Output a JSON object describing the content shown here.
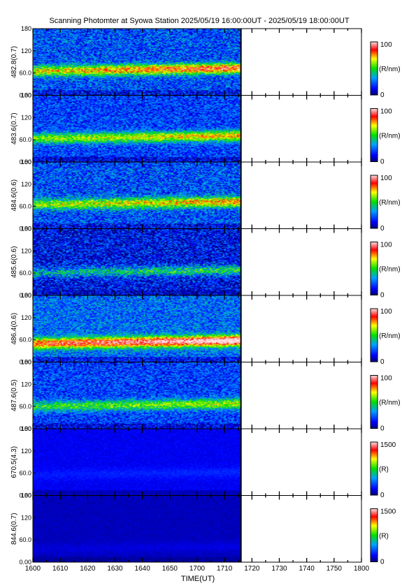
{
  "title": "Scanning Photomter at Syowa Station 2025/05/19 16:00:00UT - 2025/05/19 18:00:00UT",
  "xlabel": "TIME(UT)",
  "x_tick_labels": [
    "1600",
    "1610",
    "1620",
    "1630",
    "1640",
    "1650",
    "1700",
    "1710",
    "1720",
    "1730",
    "1740",
    "1750",
    "1800"
  ],
  "chart_data": {
    "type": "heatmap",
    "title": "Scanning Photomter at Syowa Station 2025/05/19 16:00:00UT - 2025/05/19 18:00:00UT",
    "xlabel": "TIME(UT)",
    "x_range": [
      "16:00",
      "18:00"
    ],
    "data_end": "17:16",
    "y_range": [
      0,
      180
    ],
    "panels": [
      {
        "ylabel": "482.8(0.7)",
        "yticks": [
          "0.00",
          "60.0",
          "120",
          "180"
        ],
        "colorbar_unit": "(R/nm)",
        "colorbar_range": [
          0,
          100
        ],
        "cb_max_label": "100",
        "cb_min_label": "0",
        "band_elev": 70,
        "band_strength": 0.55,
        "base": 0.22,
        "noise": 0.35
      },
      {
        "ylabel": "483.6(0.7)",
        "yticks": [
          "0.00",
          "60.0",
          "120",
          "180"
        ],
        "colorbar_unit": "(R/nm)",
        "colorbar_range": [
          0,
          100
        ],
        "cb_max_label": "100",
        "cb_min_label": "0",
        "band_elev": 68,
        "band_strength": 0.45,
        "base": 0.2,
        "noise": 0.3
      },
      {
        "ylabel": "484.6(0.6)",
        "yticks": [
          "0.00",
          "60.0",
          "120",
          "180"
        ],
        "colorbar_unit": "(R/nm)",
        "colorbar_range": [
          0,
          100
        ],
        "cb_max_label": "100",
        "cb_min_label": "0",
        "band_elev": 70,
        "band_strength": 0.45,
        "base": 0.22,
        "noise": 0.35
      },
      {
        "ylabel": "485.6(0.6)",
        "yticks": [
          "0.00",
          "60.0",
          "120",
          "180"
        ],
        "colorbar_unit": "(R/nm)",
        "colorbar_range": [
          0,
          100
        ],
        "cb_max_label": "100",
        "cb_min_label": "0",
        "band_elev": 66,
        "band_strength": 0.3,
        "base": 0.12,
        "noise": 0.4
      },
      {
        "ylabel": "486.4(0.6)",
        "yticks": [
          "0.00",
          "60.0",
          "120",
          "180"
        ],
        "colorbar_unit": "(R/nm)",
        "colorbar_range": [
          0,
          100
        ],
        "cb_max_label": "100",
        "cb_min_label": "0",
        "band_elev": 55,
        "band_strength": 0.72,
        "base": 0.26,
        "noise": 0.3
      },
      {
        "ylabel": "487.6(0.5)",
        "yticks": [
          "0.00",
          "60.0",
          "120",
          "180"
        ],
        "colorbar_unit": "(R/nm)",
        "colorbar_range": [
          0,
          100
        ],
        "cb_max_label": "100",
        "cb_min_label": "0",
        "band_elev": 65,
        "band_strength": 0.35,
        "base": 0.2,
        "noise": 0.3
      },
      {
        "ylabel": "670.5(4.3)",
        "yticks": [
          "0.00",
          "60.0",
          "120",
          "180"
        ],
        "colorbar_unit": "(R)",
        "colorbar_range": [
          0,
          1500
        ],
        "cb_max_label": "1500",
        "cb_min_label": "0",
        "band_elev": 60,
        "band_strength": 0.05,
        "base": 0.11,
        "noise": 0.06
      },
      {
        "ylabel": "844.6(0.7)",
        "yticks": [
          "0.00",
          "60.0",
          "120",
          "180"
        ],
        "colorbar_unit": "(R)",
        "colorbar_range": [
          0,
          1500
        ],
        "cb_max_label": "1500",
        "cb_min_label": "0",
        "band_elev": 40,
        "band_strength": 0.03,
        "base": 0.06,
        "noise": 0.05
      }
    ]
  }
}
